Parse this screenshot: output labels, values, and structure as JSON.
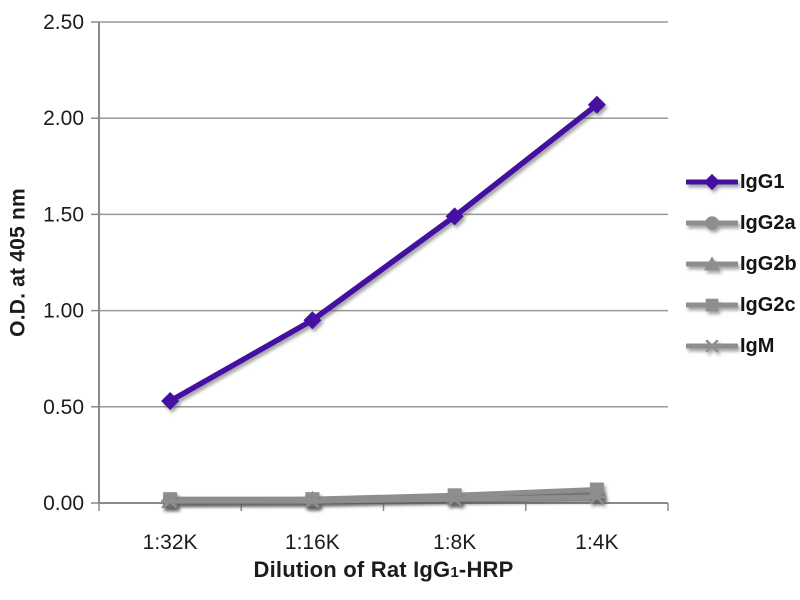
{
  "chart_data": {
    "type": "line",
    "title": "",
    "ylabel": "O.D. at 405 nm",
    "xlabel_parts": {
      "prefix": "Dilution of Rat IgG",
      "subscript": "1",
      "suffix": "-HRP"
    },
    "categories": [
      "1:32K",
      "1:16K",
      "1:8K",
      "1:4K"
    ],
    "y_ticks": [
      "0.00",
      "0.50",
      "1.00",
      "1.50",
      "2.00",
      "2.50"
    ],
    "ylim": [
      0,
      2.5
    ],
    "grid": "horizontal",
    "legend_position": "right",
    "colors": {
      "axis": "#8a8a8a",
      "grid": "#999999",
      "tick_text": "#1c1c1c",
      "purple": "#4410a2",
      "gray": "#8e8e8e"
    },
    "series": [
      {
        "name": "IgG1",
        "marker": "diamond",
        "color": "#4410a2",
        "values": [
          0.53,
          0.95,
          1.49,
          2.07
        ]
      },
      {
        "name": "IgG2a",
        "marker": "circle",
        "color": "#8e8e8e",
        "values": [
          0.01,
          0.01,
          0.03,
          0.04
        ]
      },
      {
        "name": "IgG2b",
        "marker": "triangle",
        "color": "#8e8e8e",
        "values": [
          0.01,
          0.02,
          0.03,
          0.05
        ]
      },
      {
        "name": "IgG2c",
        "marker": "square",
        "color": "#8e8e8e",
        "values": [
          0.02,
          0.02,
          0.04,
          0.07
        ]
      },
      {
        "name": "IgM",
        "marker": "star",
        "color": "#8e8e8e",
        "values": [
          0.01,
          0.01,
          0.02,
          0.03
        ]
      }
    ]
  }
}
